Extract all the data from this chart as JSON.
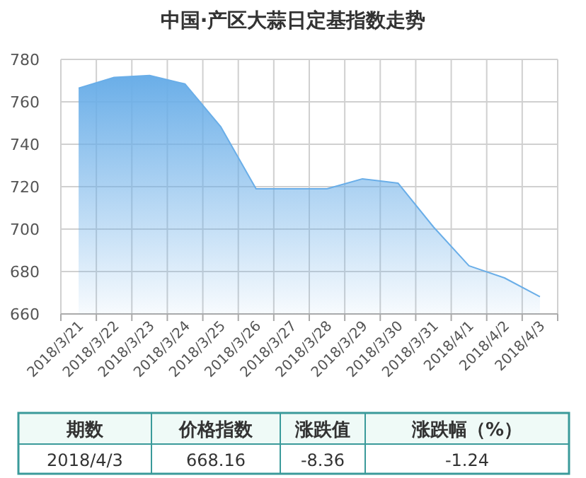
{
  "chart_data": {
    "type": "area",
    "title": "中国·产区大蒜日定基指数走势",
    "categories": [
      "2018/3/21",
      "2018/3/22",
      "2018/3/23",
      "2018/3/24",
      "2018/3/25",
      "2018/3/26",
      "2018/3/27",
      "2018/3/28",
      "2018/3/29",
      "2018/3/30",
      "2018/3/31",
      "2018/4/1",
      "2018/4/2",
      "2018/4/3"
    ],
    "values": [
      766.4,
      771.5,
      772.4,
      768.4,
      748.4,
      719,
      719,
      719,
      723.7,
      721.7,
      701,
      682.7,
      677,
      668.16
    ],
    "color": "#6aaee8",
    "ylim": [
      660,
      780
    ],
    "yticks": [
      660,
      680,
      700,
      720,
      740,
      760,
      780
    ],
    "grid": true,
    "annotations": [
      "期数",
      "价格指数",
      "涨跌值",
      "涨跌幅（%）",
      "2018/4/3",
      "668.16",
      "-8.36",
      "-1.24"
    ]
  }
}
